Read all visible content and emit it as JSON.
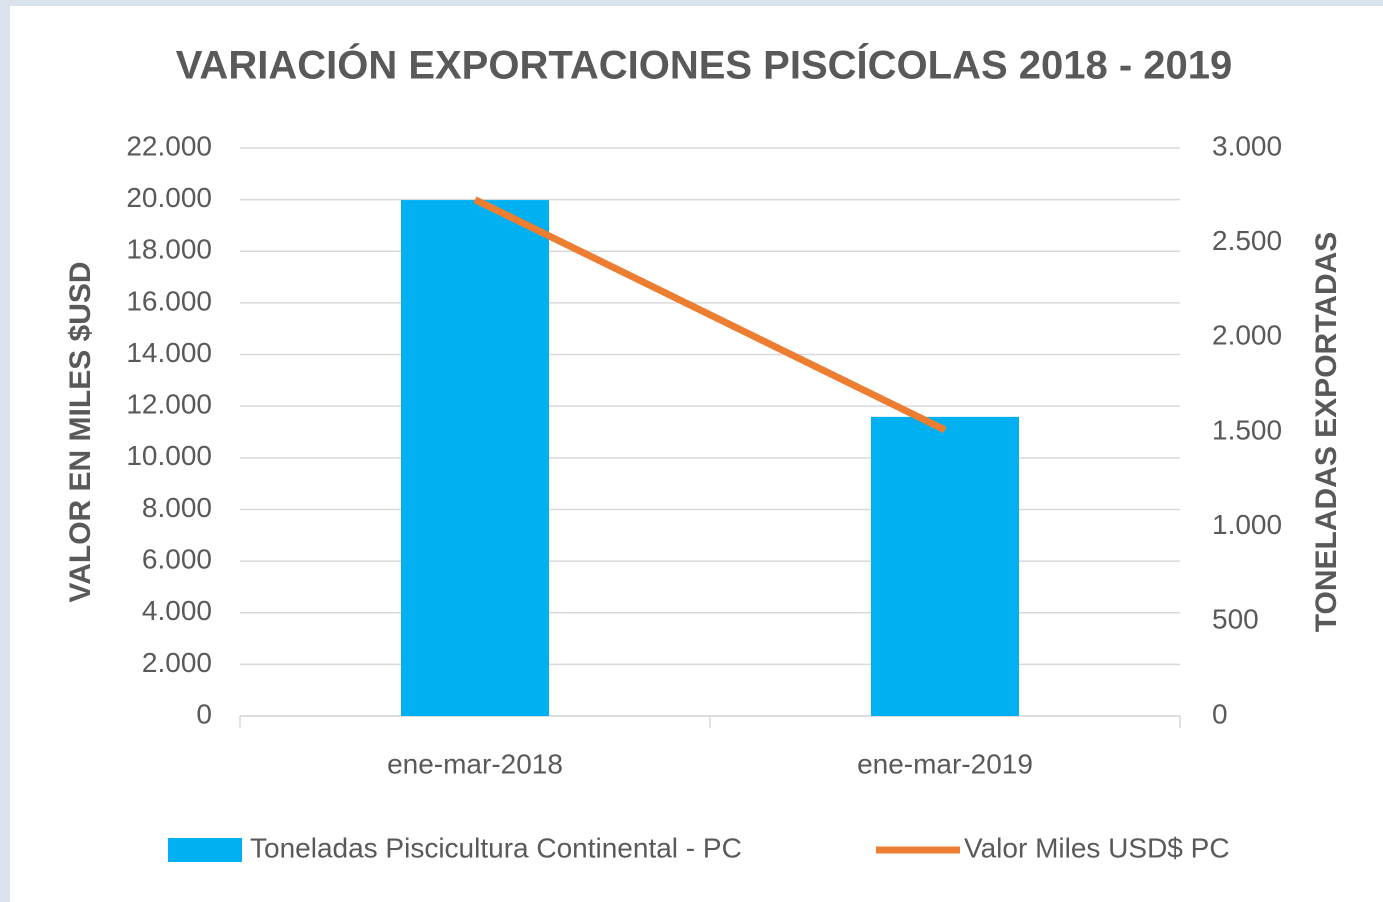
{
  "chart_data": {
    "type": "bar",
    "title": "VARIACIÓN EXPORTACIONES PISCÍCOLAS 2018 - 2019",
    "ylabel": "VALOR EN MILES $USD",
    "y2label": "TONELADAS EXPORTADAS",
    "categories": [
      "ene-mar-2018",
      "ene-mar-2019"
    ],
    "series": [
      {
        "name": "Toneladas Piscicultura Continental - PC",
        "type": "bar",
        "axis": "y2",
        "color": "#00b0f0",
        "values": [
          2725,
          1580
        ]
      },
      {
        "name": "Valor Miles USD$ PC",
        "type": "line",
        "axis": "y",
        "color": "#ed7d31",
        "values": [
          20000,
          11080
        ]
      }
    ],
    "ylim": [
      0,
      22000
    ],
    "yticks": [
      0,
      {
        "value": 2000,
        "label": "2.000"
      },
      {
        "value": 4000,
        "label": "4.000"
      },
      {
        "value": 6000,
        "label": "6.000"
      },
      {
        "value": 8000,
        "label": "8.000"
      },
      {
        "value": 10000,
        "label": "10.000"
      },
      {
        "value": 12000,
        "label": "12.000"
      },
      {
        "value": 14000,
        "label": "14.000"
      },
      {
        "value": 16000,
        "label": "16.000"
      },
      {
        "value": 18000,
        "label": "18.000"
      },
      {
        "value": 20000,
        "label": "20.000"
      },
      {
        "value": 22000,
        "label": "22.000"
      }
    ],
    "y2lim": [
      0,
      3000
    ],
    "y2ticks": [
      0,
      500,
      {
        "value": 1000,
        "label": "1.000"
      },
      {
        "value": 1500,
        "label": "1.500"
      },
      {
        "value": 2000,
        "label": "2.000"
      },
      {
        "value": 2500,
        "label": "2.500"
      },
      {
        "value": 3000,
        "label": "3.000"
      }
    ],
    "grid": true,
    "legend": "bottom"
  }
}
